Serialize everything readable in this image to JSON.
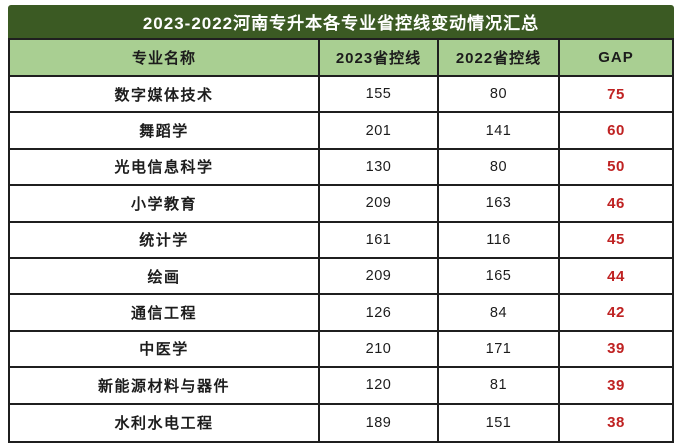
{
  "chart_data": {
    "type": "table",
    "title": "2023-2022河南专升本各专业省控线变动情况汇总",
    "columns": [
      "专业名称",
      "2023省控线",
      "2022省控线",
      "GAP"
    ],
    "rows": [
      [
        "数字媒体技术",
        "155",
        "80",
        "75"
      ],
      [
        "舞蹈学",
        "201",
        "141",
        "60"
      ],
      [
        "光电信息科学",
        "130",
        "80",
        "50"
      ],
      [
        "小学教育",
        "209",
        "163",
        "46"
      ],
      [
        "统计学",
        "161",
        "116",
        "45"
      ],
      [
        "绘画",
        "209",
        "165",
        "44"
      ],
      [
        "通信工程",
        "126",
        "84",
        "42"
      ],
      [
        "中医学",
        "210",
        "171",
        "39"
      ],
      [
        "新能源材料与器件",
        "120",
        "81",
        "39"
      ],
      [
        "水利水电工程",
        "189",
        "151",
        "38"
      ]
    ]
  },
  "colors": {
    "title_bg": "#3b5a23",
    "title_text": "#ffffff",
    "header_bg": "#a9cf92",
    "border": "#1f1f1f",
    "body_text": "#1c1c1c",
    "gap_text": "#bf2222",
    "row_bg": "#ffffff",
    "page_bg": "#ffffff"
  }
}
